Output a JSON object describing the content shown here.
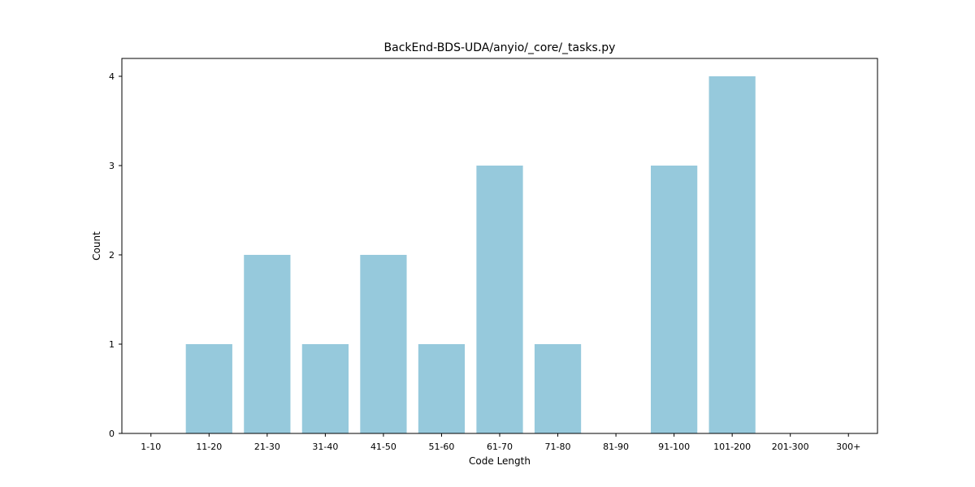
{
  "chart_data": {
    "type": "bar",
    "title": "BackEnd-BDS-UDA/anyio/_core/_tasks.py",
    "xlabel": "Code Length",
    "ylabel": "Count",
    "categories": [
      "1-10",
      "11-20",
      "21-30",
      "31-40",
      "41-50",
      "51-60",
      "61-70",
      "71-80",
      "81-90",
      "91-100",
      "101-200",
      "201-300",
      "300+"
    ],
    "values": [
      0,
      1,
      2,
      1,
      2,
      1,
      3,
      1,
      0,
      3,
      4,
      0,
      0
    ],
    "ylim": [
      0,
      4.2
    ],
    "yticks": [
      0,
      1,
      2,
      3,
      4
    ],
    "grid": false,
    "colors": {
      "bar": "#96c9dc",
      "axis": "#000000"
    }
  }
}
